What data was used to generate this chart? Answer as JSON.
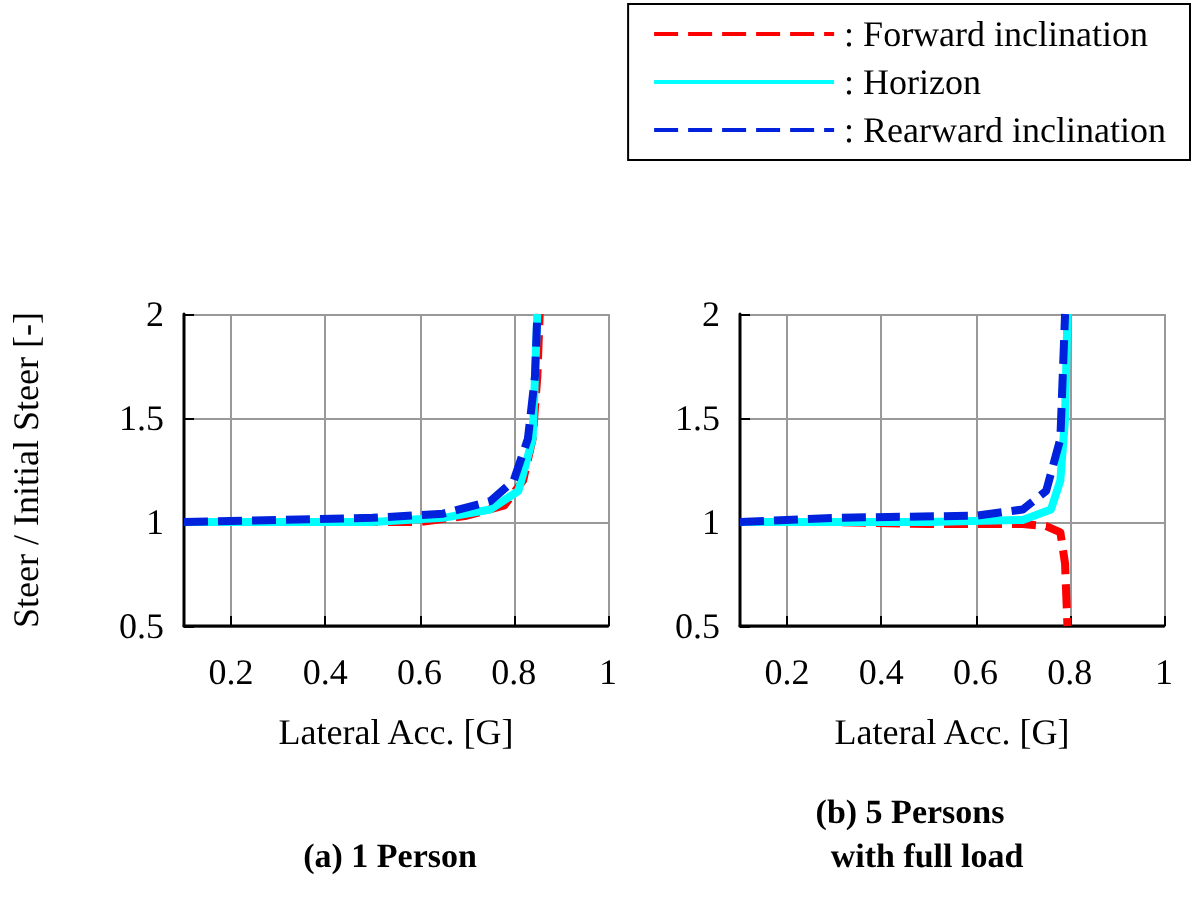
{
  "chart_data": [
    {
      "type": "line",
      "title": "(a) 1 Person",
      "xlabel": "Lateral Acc. [G]",
      "ylabel": "Steer / Initial Steer [-]",
      "xlim": [
        0.1,
        1
      ],
      "xticks": [
        0.2,
        0.4,
        0.6,
        0.8,
        1
      ],
      "ylim": [
        0.5,
        2
      ],
      "yticks": [
        0.5,
        1,
        1.5,
        2
      ],
      "grid": true,
      "legend": "top right",
      "series": [
        {
          "name": ": Forward inclination",
          "color": "#ff0000",
          "line_style": "dashed",
          "x": [
            0.1,
            0.3,
            0.5,
            0.6,
            0.7,
            0.78,
            0.82,
            0.84,
            0.85,
            0.855
          ],
          "values": [
            1,
            1,
            1,
            1,
            1.03,
            1.08,
            1.2,
            1.4,
            1.7,
            2
          ]
        },
        {
          "name": ": Horizon",
          "color": "#00ffff",
          "line_style": "solid",
          "x": [
            0.1,
            0.3,
            0.5,
            0.65,
            0.75,
            0.81,
            0.84,
            0.85
          ],
          "values": [
            1,
            1,
            1,
            1.02,
            1.06,
            1.15,
            1.4,
            2
          ]
        },
        {
          "name": ": Rearward inclination",
          "color": "#0022dd",
          "line_style": "dashed",
          "x": [
            0.1,
            0.3,
            0.5,
            0.65,
            0.75,
            0.8,
            0.83,
            0.845,
            0.85
          ],
          "values": [
            1,
            1.01,
            1.02,
            1.04,
            1.1,
            1.2,
            1.4,
            1.7,
            2
          ]
        }
      ]
    },
    {
      "type": "line",
      "title": "(b) 5 Persons\n    with full load",
      "xlabel": "Lateral Acc. [G]",
      "xlim": [
        0.1,
        1
      ],
      "xticks": [
        0.2,
        0.4,
        0.6,
        0.8,
        1
      ],
      "ylim": [
        0.5,
        2
      ],
      "yticks": [
        0.5,
        1,
        1.5,
        2
      ],
      "grid": true,
      "series": [
        {
          "color": "#ff0000",
          "line_style": "dashed",
          "x": [
            0.1,
            0.3,
            0.5,
            0.7,
            0.75,
            0.78,
            0.79,
            0.795
          ],
          "values": [
            1,
            1,
            0.99,
            0.99,
            0.98,
            0.95,
            0.8,
            0.5
          ]
        },
        {
          "color": "#00ffff",
          "line_style": "solid",
          "x": [
            0.1,
            0.3,
            0.5,
            0.7,
            0.76,
            0.78,
            0.79,
            0.795
          ],
          "values": [
            1,
            1,
            1,
            1.01,
            1.06,
            1.2,
            1.5,
            2
          ]
        },
        {
          "color": "#0022dd",
          "line_style": "dashed",
          "x": [
            0.1,
            0.3,
            0.6,
            0.7,
            0.75,
            0.78,
            0.79
          ],
          "values": [
            1,
            1.02,
            1.03,
            1.06,
            1.15,
            1.4,
            2
          ]
        }
      ]
    }
  ]
}
